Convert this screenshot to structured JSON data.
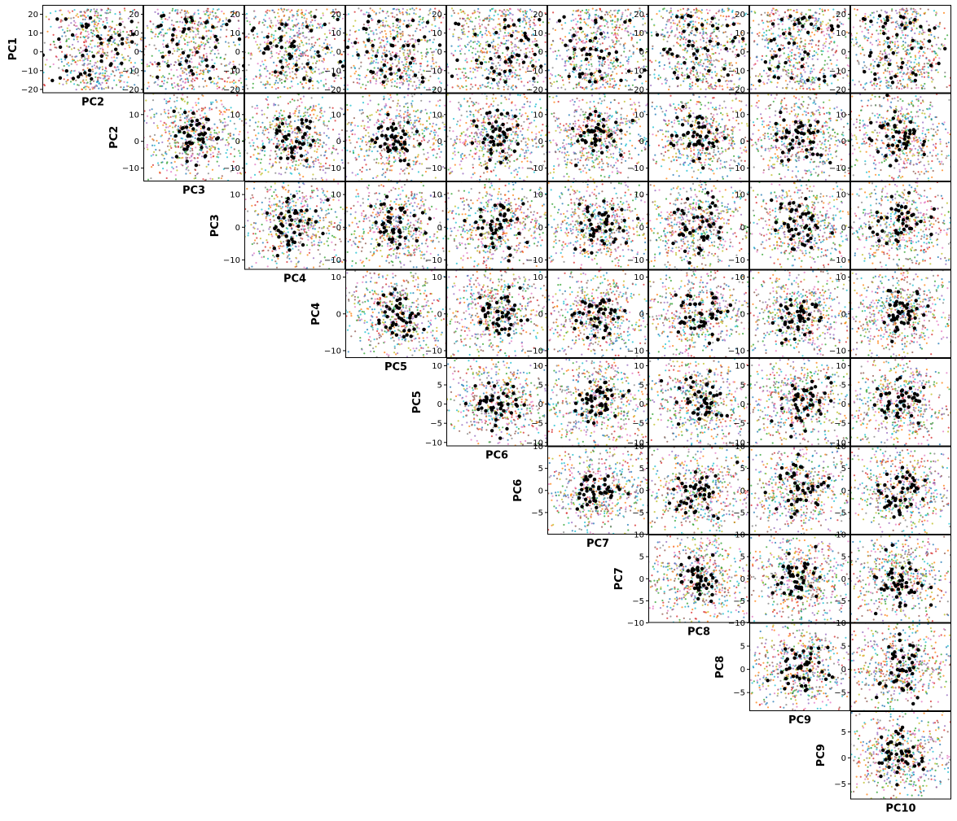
{
  "figure": {
    "rows": 9,
    "cols": 9,
    "colors": {
      "series_palette": [
        "#1f77b4",
        "#ff7f0e",
        "#2ca02c",
        "#d62728",
        "#9467bd",
        "#8c564b",
        "#e377c2",
        "#7f7f7f",
        "#bcbd22",
        "#17becf"
      ],
      "highlight": "#000000"
    },
    "x_labels": [
      "PC2",
      "PC3",
      "PC4",
      "PC5",
      "PC6",
      "PC7",
      "PC8",
      "PC9",
      "PC10"
    ],
    "y_labels": [
      "PC1",
      "PC2",
      "PC3",
      "PC4",
      "PC5",
      "PC6",
      "PC7",
      "PC8",
      "PC9"
    ]
  },
  "chart_data": {
    "type": "scatter",
    "layout": "pairwise lower-right triangle",
    "components": [
      "PC1",
      "PC2",
      "PC3",
      "PC4",
      "PC5",
      "PC6",
      "PC7",
      "PC8",
      "PC9",
      "PC10"
    ],
    "y_ranges": {
      "PC1": [
        -22,
        25
      ],
      "PC2": [
        -15,
        18
      ],
      "PC3": [
        -13,
        14
      ],
      "PC4": [
        -12,
        12
      ],
      "PC5": [
        -11,
        12
      ],
      "PC6": [
        -10,
        10
      ],
      "PC7": [
        -10,
        10
      ],
      "PC8": [
        -9,
        10
      ],
      "PC9": [
        -8,
        9
      ]
    },
    "y_ticks": {
      "PC1": [
        "20",
        "10",
        "0",
        "−10",
        "−20"
      ],
      "PC2": [
        "10",
        "0",
        "−10"
      ],
      "PC3": [
        "10",
        "0",
        "−10"
      ],
      "PC4": [
        "10",
        "0",
        "−10"
      ],
      "PC5": [
        "10",
        "5",
        "0",
        "−5",
        "−10"
      ],
      "PC6": [
        "10",
        "5",
        "0",
        "−5"
      ],
      "PC7": [
        "10",
        "5",
        "0",
        "−5",
        "−10"
      ],
      "PC8": [
        "5",
        "0",
        "−5"
      ],
      "PC9": [
        "5",
        "0",
        "−5"
      ]
    },
    "y_tick_values": {
      "PC1": [
        20,
        10,
        0,
        -10,
        -20
      ],
      "PC2": [
        10,
        0,
        -10
      ],
      "PC3": [
        10,
        0,
        -10
      ],
      "PC4": [
        10,
        0,
        -10
      ],
      "PC5": [
        10,
        5,
        0,
        -5,
        -10
      ],
      "PC6": [
        10,
        5,
        0,
        -5
      ],
      "PC7": [
        10,
        5,
        0,
        -5,
        -10
      ],
      "PC8": [
        5,
        0,
        -5
      ],
      "PC9": [
        5,
        0,
        -5
      ]
    },
    "series_count": 10,
    "highlight_points_per_panel": 45,
    "grid": false,
    "legend": "none"
  }
}
